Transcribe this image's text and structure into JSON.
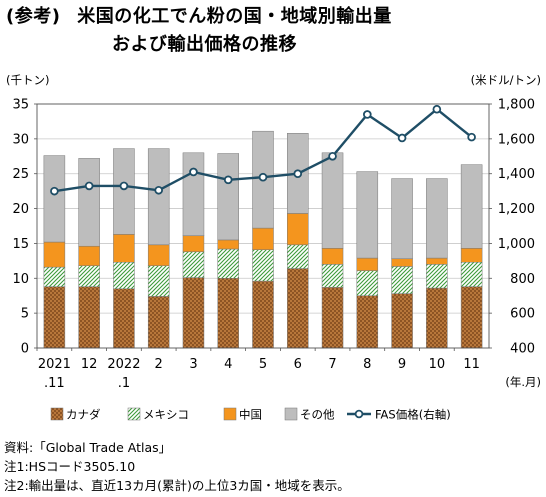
{
  "title": {
    "prefix": "(参考)",
    "line1": "米国の化工でん粉の国・地域別輸出量",
    "line2": "および輸出価格の推移"
  },
  "chart_data": {
    "type": "bar",
    "stacked": true,
    "categories": [
      "2021.11",
      "12",
      "2022.1",
      "2",
      "3",
      "4",
      "5",
      "6",
      "7",
      "8",
      "9",
      "10",
      "11"
    ],
    "x_tick_labels": [
      [
        "2021",
        ".11"
      ],
      [
        "12",
        ""
      ],
      [
        "2022",
        ".1"
      ],
      [
        "2",
        ""
      ],
      [
        "3",
        ""
      ],
      [
        "4",
        ""
      ],
      [
        "5",
        ""
      ],
      [
        "6",
        ""
      ],
      [
        "7",
        ""
      ],
      [
        "8",
        ""
      ],
      [
        "9",
        ""
      ],
      [
        "10",
        ""
      ],
      [
        "11",
        ""
      ]
    ],
    "xlabel": "(年.月)",
    "ylabel_left": "(千トン)",
    "ylabel_right": "(米ドル/トン)",
    "ylim_left": [
      0,
      35
    ],
    "yticks_left": [
      0,
      5,
      10,
      15,
      20,
      25,
      30,
      35
    ],
    "ylim_right": [
      400,
      1800
    ],
    "yticks_right": [
      "400",
      "600",
      "800",
      "1,000",
      "1,200",
      "1,400",
      "1,600",
      "1,800"
    ],
    "grid": true,
    "legend_position": "bottom",
    "series": [
      {
        "name": "カナダ",
        "pattern": "brown-dots",
        "color": "#a0622d",
        "values": [
          8.8,
          8.8,
          8.5,
          7.4,
          10.1,
          10.0,
          9.6,
          11.4,
          8.7,
          7.5,
          7.8,
          8.6,
          8.8
        ]
      },
      {
        "name": "メキシコ",
        "pattern": "green-hatch",
        "color": "#6ab04c",
        "values": [
          2.8,
          3.0,
          3.8,
          4.4,
          3.7,
          4.2,
          4.5,
          3.4,
          3.3,
          3.6,
          3.9,
          3.4,
          3.5
        ]
      },
      {
        "name": "中国",
        "pattern": "solid",
        "color": "#f4951e",
        "values": [
          3.6,
          2.8,
          4.0,
          3.0,
          2.3,
          1.3,
          3.1,
          4.5,
          2.3,
          1.8,
          1.1,
          0.9,
          2.0
        ]
      },
      {
        "name": "その他",
        "pattern": "solid",
        "color": "#bdbdbd",
        "values": [
          12.4,
          12.6,
          12.3,
          13.8,
          11.9,
          12.4,
          13.9,
          11.5,
          13.7,
          12.4,
          11.5,
          11.4,
          12.0
        ]
      },
      {
        "name": "FAS価格(右軸)",
        "type": "line",
        "axis": "right",
        "color": "#1f4e66",
        "values": [
          1300,
          1330,
          1330,
          1305,
          1410,
          1365,
          1380,
          1400,
          1500,
          1740,
          1605,
          1770,
          1610
        ]
      }
    ]
  },
  "notes": [
    "資料:「Global Trade Atlas」",
    "注1:HSコード3505.10",
    "注2:輸出量は、直近13カ月(累計)の上位3カ国・地域を表示。"
  ]
}
